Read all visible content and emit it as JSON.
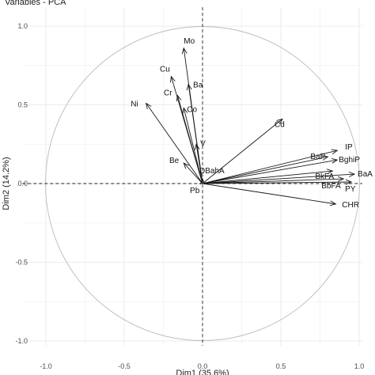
{
  "chart_data": {
    "type": "scatter",
    "subtype": "pca-correlation-circle",
    "title": "Variables - PCA",
    "xlabel": "Dim1 (35.6%)",
    "ylabel": "Dim2 (14.2%)",
    "xlim": [
      -1.15,
      1.02
    ],
    "ylim": [
      -1.03,
      1.12
    ],
    "xticks": [
      {
        "value": -1.0,
        "label": "-1.0"
      },
      {
        "value": -0.5,
        "label": "-0.5"
      },
      {
        "value": 0.0,
        "label": "0.0"
      },
      {
        "value": 0.5,
        "label": "0.5"
      },
      {
        "value": 1.0,
        "label": "1.0"
      }
    ],
    "yticks": [
      {
        "value": -1.0,
        "label": "-1.0"
      },
      {
        "value": -0.5,
        "label": "-0.5"
      },
      {
        "value": 0.0,
        "label": "0.0"
      },
      {
        "value": 0.5,
        "label": "0.5"
      },
      {
        "value": 1.0,
        "label": "1.0"
      }
    ],
    "grid": true,
    "unit_circle": true,
    "reference_lines": {
      "x": 0,
      "y": 0,
      "style": "dashed"
    },
    "variables": [
      {
        "label": "Mo",
        "x": -0.12,
        "y": 0.86
      },
      {
        "label": "Cu",
        "x": -0.2,
        "y": 0.68
      },
      {
        "label": "Ba",
        "x": -0.09,
        "y": 0.63
      },
      {
        "label": "Cr",
        "x": -0.16,
        "y": 0.56
      },
      {
        "label": "Co",
        "x": -0.12,
        "y": 0.48
      },
      {
        "label": "Ni",
        "x": -0.36,
        "y": 0.51
      },
      {
        "label": "Cd",
        "x": 0.51,
        "y": 0.41
      },
      {
        "label": "V",
        "x": -0.04,
        "y": 0.25
      },
      {
        "label": "Be",
        "x": -0.12,
        "y": 0.13
      },
      {
        "label": "DBahA",
        "x": 0.0,
        "y": 0.03
      },
      {
        "label": "Pb",
        "x": -0.02,
        "y": 0.0
      },
      {
        "label": "IP",
        "x": 0.86,
        "y": 0.21
      },
      {
        "label": "BaP",
        "x": 0.8,
        "y": 0.17
      },
      {
        "label": "BghiP",
        "x": 0.86,
        "y": 0.15
      },
      {
        "label": "BkFA",
        "x": 0.83,
        "y": 0.08
      },
      {
        "label": "BaA",
        "x": 0.97,
        "y": 0.06
      },
      {
        "label": "BbFA",
        "x": 0.9,
        "y": 0.03
      },
      {
        "label": "PY",
        "x": 0.95,
        "y": 0.01
      },
      {
        "label": "CHR",
        "x": 0.85,
        "y": -0.13
      }
    ]
  }
}
